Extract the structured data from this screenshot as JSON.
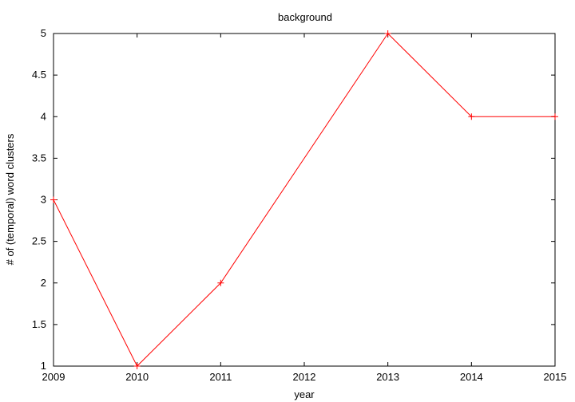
{
  "chart_data": {
    "type": "line",
    "title": "background",
    "xlabel": "year",
    "ylabel": "# of (temporal) word clusters",
    "x": [
      2009,
      2010,
      2011,
      2013,
      2014,
      2015
    ],
    "series": [
      {
        "values": [
          3,
          1,
          2,
          5,
          4,
          4
        ],
        "color": "#ff0000",
        "marker": "plus"
      }
    ],
    "xlim": [
      2009,
      2015
    ],
    "ylim": [
      1,
      5
    ],
    "xticks": [
      "2009",
      "2010",
      "2011",
      "2012",
      "2013",
      "2014",
      "2015"
    ],
    "yticks": [
      "1",
      "1.5",
      "2",
      "2.5",
      "3",
      "3.5",
      "4",
      "4.5",
      "5"
    ],
    "grid": false
  }
}
